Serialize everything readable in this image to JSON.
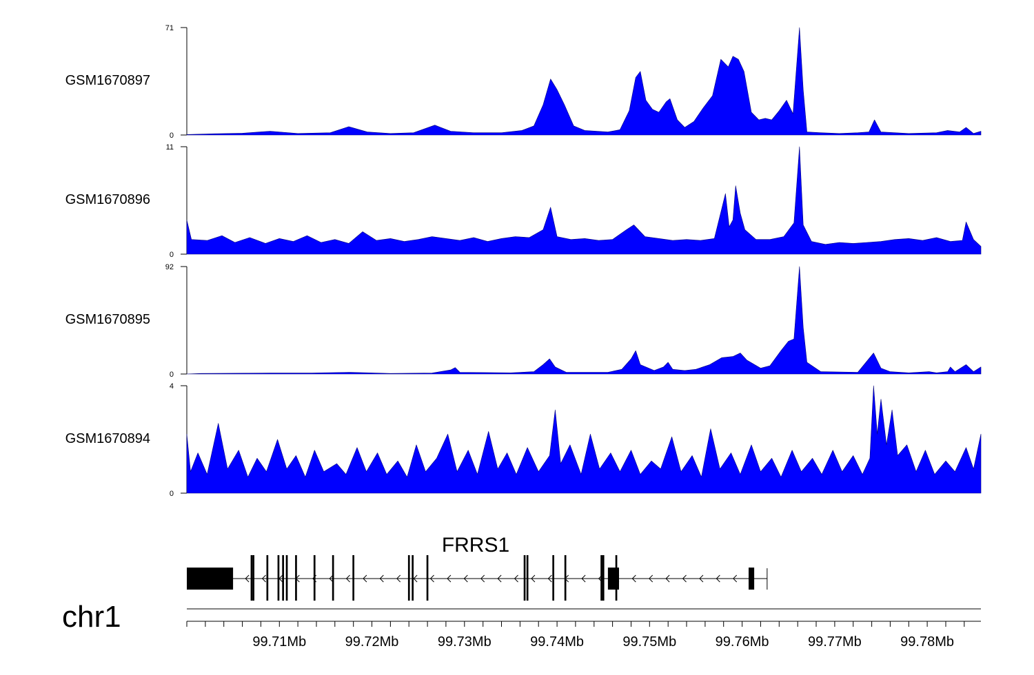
{
  "chart_data": {
    "type": "area",
    "chromosome": "chr1",
    "xlim": [
      99.7,
      99.7858
    ],
    "x_unit": "Mb",
    "x_ticks": [
      99.71,
      99.72,
      99.73,
      99.74,
      99.75,
      99.76,
      99.77,
      99.78
    ],
    "x_tick_labels": [
      "99.71Mb",
      "99.72Mb",
      "99.73Mb",
      "99.74Mb",
      "99.75Mb",
      "99.76Mb",
      "99.77Mb",
      "99.78Mb"
    ],
    "fill_color": "#0000ff",
    "tracks": [
      {
        "name": "GSM1670897",
        "ylim": [
          0,
          71
        ],
        "points": [
          [
            99.7,
            0.3
          ],
          [
            99.703,
            0.8
          ],
          [
            99.706,
            1.2
          ],
          [
            99.709,
            2.5
          ],
          [
            99.712,
            1
          ],
          [
            99.7155,
            1.5
          ],
          [
            99.7175,
            5.5
          ],
          [
            99.7195,
            2
          ],
          [
            99.722,
            1
          ],
          [
            99.7245,
            1.5
          ],
          [
            99.7268,
            6.5
          ],
          [
            99.7285,
            2.5
          ],
          [
            99.731,
            1.5
          ],
          [
            99.734,
            1.5
          ],
          [
            99.7362,
            3
          ],
          [
            99.7375,
            6
          ],
          [
            99.7385,
            20
          ],
          [
            99.7393,
            37
          ],
          [
            99.74,
            30
          ],
          [
            99.7408,
            20
          ],
          [
            99.7418,
            6
          ],
          [
            99.743,
            3
          ],
          [
            99.7455,
            2
          ],
          [
            99.7468,
            3.5
          ],
          [
            99.7478,
            16
          ],
          [
            99.7485,
            38
          ],
          [
            99.749,
            42
          ],
          [
            99.7496,
            23
          ],
          [
            99.7503,
            17
          ],
          [
            99.751,
            15
          ],
          [
            99.7518,
            22
          ],
          [
            99.7522,
            24
          ],
          [
            99.753,
            10
          ],
          [
            99.7538,
            5
          ],
          [
            99.7548,
            9
          ],
          [
            99.7558,
            18
          ],
          [
            99.7568,
            26
          ],
          [
            99.7577,
            50
          ],
          [
            99.7585,
            45
          ],
          [
            99.759,
            52
          ],
          [
            99.7596,
            50
          ],
          [
            99.7602,
            42
          ],
          [
            99.761,
            15
          ],
          [
            99.7618,
            10
          ],
          [
            99.7625,
            11
          ],
          [
            99.7632,
            10
          ],
          [
            99.764,
            16
          ],
          [
            99.7648,
            23
          ],
          [
            99.7655,
            14
          ],
          [
            99.7662,
            71
          ],
          [
            99.7666,
            30
          ],
          [
            99.767,
            2
          ],
          [
            99.7685,
            1.5
          ],
          [
            99.7705,
            1
          ],
          [
            99.7725,
            1.5
          ],
          [
            99.7737,
            2
          ],
          [
            99.7743,
            10
          ],
          [
            99.775,
            2
          ],
          [
            99.778,
            1
          ],
          [
            99.781,
            1.5
          ],
          [
            99.7822,
            3
          ],
          [
            99.7835,
            2
          ],
          [
            99.7842,
            5
          ],
          [
            99.785,
            1
          ],
          [
            99.7858,
            2.5
          ]
        ]
      },
      {
        "name": "GSM1670896",
        "ylim": [
          0,
          11
        ],
        "points": [
          [
            99.7,
            3.5
          ],
          [
            99.7005,
            1.5
          ],
          [
            99.7022,
            1.4
          ],
          [
            99.7038,
            1.9
          ],
          [
            99.7052,
            1.2
          ],
          [
            99.7068,
            1.7
          ],
          [
            99.7085,
            1.1
          ],
          [
            99.71,
            1.6
          ],
          [
            99.7115,
            1.3
          ],
          [
            99.713,
            1.9
          ],
          [
            99.7145,
            1.2
          ],
          [
            99.716,
            1.5
          ],
          [
            99.7175,
            1.1
          ],
          [
            99.719,
            2.3
          ],
          [
            99.7205,
            1.4
          ],
          [
            99.722,
            1.6
          ],
          [
            99.7235,
            1.3
          ],
          [
            99.725,
            1.5
          ],
          [
            99.7265,
            1.8
          ],
          [
            99.728,
            1.6
          ],
          [
            99.7295,
            1.4
          ],
          [
            99.731,
            1.7
          ],
          [
            99.7325,
            1.3
          ],
          [
            99.734,
            1.6
          ],
          [
            99.7355,
            1.8
          ],
          [
            99.737,
            1.7
          ],
          [
            99.7385,
            2.5
          ],
          [
            99.7393,
            4.8
          ],
          [
            99.74,
            1.8
          ],
          [
            99.7415,
            1.5
          ],
          [
            99.743,
            1.6
          ],
          [
            99.7445,
            1.4
          ],
          [
            99.746,
            1.5
          ],
          [
            99.7475,
            2.5
          ],
          [
            99.7483,
            3
          ],
          [
            99.7495,
            1.8
          ],
          [
            99.751,
            1.6
          ],
          [
            99.7525,
            1.4
          ],
          [
            99.754,
            1.5
          ],
          [
            99.7555,
            1.4
          ],
          [
            99.757,
            1.6
          ],
          [
            99.7582,
            6.2
          ],
          [
            99.7586,
            2.8
          ],
          [
            99.759,
            3.5
          ],
          [
            99.7593,
            7
          ],
          [
            99.7598,
            4.2
          ],
          [
            99.7603,
            2.5
          ],
          [
            99.7615,
            1.5
          ],
          [
            99.763,
            1.5
          ],
          [
            99.7645,
            1.8
          ],
          [
            99.7656,
            3.2
          ],
          [
            99.7662,
            11
          ],
          [
            99.7666,
            3
          ],
          [
            99.7675,
            1.3
          ],
          [
            99.769,
            1
          ],
          [
            99.7705,
            1.2
          ],
          [
            99.772,
            1.1
          ],
          [
            99.7735,
            1.2
          ],
          [
            99.775,
            1.3
          ],
          [
            99.7765,
            1.5
          ],
          [
            99.778,
            1.6
          ],
          [
            99.7795,
            1.4
          ],
          [
            99.781,
            1.7
          ],
          [
            99.7825,
            1.3
          ],
          [
            99.7838,
            1.4
          ],
          [
            99.7842,
            3.3
          ],
          [
            99.785,
            1.5
          ],
          [
            99.7858,
            0.8
          ]
        ]
      },
      {
        "name": "GSM1670895",
        "ylim": [
          0,
          92
        ],
        "points": [
          [
            99.7,
            0
          ],
          [
            99.7015,
            0.5
          ],
          [
            99.709,
            0.8
          ],
          [
            99.7135,
            0.8
          ],
          [
            99.7175,
            1.5
          ],
          [
            99.722,
            0.5
          ],
          [
            99.7265,
            0.8
          ],
          [
            99.7285,
            3.5
          ],
          [
            99.729,
            5.5
          ],
          [
            99.7295,
            1.5
          ],
          [
            99.735,
            1
          ],
          [
            99.7375,
            2
          ],
          [
            99.7385,
            8
          ],
          [
            99.7392,
            13
          ],
          [
            99.7398,
            6
          ],
          [
            99.741,
            1.5
          ],
          [
            99.7455,
            1.5
          ],
          [
            99.747,
            4
          ],
          [
            99.748,
            13
          ],
          [
            99.7485,
            20
          ],
          [
            99.749,
            8
          ],
          [
            99.7505,
            3
          ],
          [
            99.7515,
            6
          ],
          [
            99.752,
            10
          ],
          [
            99.7525,
            4
          ],
          [
            99.7538,
            3
          ],
          [
            99.755,
            4
          ],
          [
            99.7565,
            8
          ],
          [
            99.7578,
            14
          ],
          [
            99.759,
            15
          ],
          [
            99.7598,
            18
          ],
          [
            99.7605,
            12
          ],
          [
            99.762,
            5
          ],
          [
            99.763,
            7
          ],
          [
            99.7642,
            20
          ],
          [
            99.765,
            28
          ],
          [
            99.7656,
            30
          ],
          [
            99.7662,
            92
          ],
          [
            99.7666,
            40
          ],
          [
            99.767,
            10
          ],
          [
            99.7685,
            2
          ],
          [
            99.7725,
            1.5
          ],
          [
            99.7742,
            18
          ],
          [
            99.775,
            5
          ],
          [
            99.776,
            2
          ],
          [
            99.778,
            1
          ],
          [
            99.7802,
            2
          ],
          [
            99.781,
            1
          ],
          [
            99.7822,
            2
          ],
          [
            99.7825,
            6
          ],
          [
            99.783,
            2
          ],
          [
            99.7842,
            8
          ],
          [
            99.785,
            2
          ],
          [
            99.7858,
            6
          ]
        ]
      },
      {
        "name": "GSM1670894",
        "ylim": [
          0,
          4
        ],
        "points": [
          [
            99.7,
            2.2
          ],
          [
            99.7004,
            0.8
          ],
          [
            99.7012,
            1.5
          ],
          [
            99.7022,
            0.7
          ],
          [
            99.7034,
            2.6
          ],
          [
            99.7044,
            0.9
          ],
          [
            99.7056,
            1.6
          ],
          [
            99.7066,
            0.6
          ],
          [
            99.7076,
            1.3
          ],
          [
            99.7086,
            0.8
          ],
          [
            99.7098,
            2
          ],
          [
            99.7108,
            0.9
          ],
          [
            99.7118,
            1.4
          ],
          [
            99.7128,
            0.6
          ],
          [
            99.7138,
            1.6
          ],
          [
            99.7148,
            0.8
          ],
          [
            99.7162,
            1.1
          ],
          [
            99.7172,
            0.7
          ],
          [
            99.7184,
            1.7
          ],
          [
            99.7194,
            0.8
          ],
          [
            99.7206,
            1.5
          ],
          [
            99.7216,
            0.7
          ],
          [
            99.7228,
            1.2
          ],
          [
            99.7238,
            0.6
          ],
          [
            99.7248,
            1.8
          ],
          [
            99.7258,
            0.8
          ],
          [
            99.727,
            1.3
          ],
          [
            99.7282,
            2.2
          ],
          [
            99.7292,
            0.8
          ],
          [
            99.7304,
            1.6
          ],
          [
            99.7314,
            0.7
          ],
          [
            99.7326,
            2.3
          ],
          [
            99.7336,
            0.9
          ],
          [
            99.7346,
            1.5
          ],
          [
            99.7356,
            0.7
          ],
          [
            99.7368,
            1.7
          ],
          [
            99.738,
            0.8
          ],
          [
            99.7392,
            1.4
          ],
          [
            99.7398,
            3.1
          ],
          [
            99.7404,
            1.1
          ],
          [
            99.7414,
            1.8
          ],
          [
            99.7426,
            0.7
          ],
          [
            99.7436,
            2.2
          ],
          [
            99.7446,
            0.9
          ],
          [
            99.7458,
            1.5
          ],
          [
            99.7468,
            0.8
          ],
          [
            99.748,
            1.6
          ],
          [
            99.749,
            0.7
          ],
          [
            99.7502,
            1.2
          ],
          [
            99.7512,
            0.9
          ],
          [
            99.7524,
            2.1
          ],
          [
            99.7534,
            0.8
          ],
          [
            99.7546,
            1.4
          ],
          [
            99.7556,
            0.6
          ],
          [
            99.7566,
            2.4
          ],
          [
            99.7576,
            0.9
          ],
          [
            99.7588,
            1.5
          ],
          [
            99.7598,
            0.7
          ],
          [
            99.761,
            1.8
          ],
          [
            99.762,
            0.8
          ],
          [
            99.7632,
            1.3
          ],
          [
            99.7642,
            0.6
          ],
          [
            99.7654,
            1.6
          ],
          [
            99.7664,
            0.8
          ],
          [
            99.7676,
            1.3
          ],
          [
            99.7686,
            0.7
          ],
          [
            99.7698,
            1.6
          ],
          [
            99.7708,
            0.8
          ],
          [
            99.772,
            1.4
          ],
          [
            99.773,
            0.7
          ],
          [
            99.7738,
            1.3
          ],
          [
            99.7742,
            4
          ],
          [
            99.7746,
            2.2
          ],
          [
            99.775,
            3.5
          ],
          [
            99.7756,
            1.8
          ],
          [
            99.7762,
            3.1
          ],
          [
            99.7768,
            1.4
          ],
          [
            99.7778,
            1.8
          ],
          [
            99.7788,
            0.8
          ],
          [
            99.7798,
            1.6
          ],
          [
            99.7808,
            0.7
          ],
          [
            99.782,
            1.2
          ],
          [
            99.783,
            0.8
          ],
          [
            99.7842,
            1.7
          ],
          [
            99.785,
            0.9
          ],
          [
            99.7858,
            2.2
          ]
        ]
      }
    ],
    "gene": {
      "name": "FRRS1",
      "strand": "-",
      "start": 99.7,
      "end": 99.7627,
      "exons": [
        [
          99.7,
          99.705
        ],
        [
          99.7069,
          99.7071
        ],
        [
          99.7071,
          99.7073
        ],
        [
          99.7086,
          99.7088
        ],
        [
          99.7098,
          99.71
        ],
        [
          99.7103,
          99.7105
        ],
        [
          99.7107,
          99.7109
        ],
        [
          99.7117,
          99.7119
        ],
        [
          99.7137,
          99.7139
        ],
        [
          99.7157,
          99.7159
        ],
        [
          99.7179,
          99.7181
        ],
        [
          99.7239,
          99.7241
        ],
        [
          99.7243,
          99.7245
        ],
        [
          99.7259,
          99.7261
        ],
        [
          99.7364,
          99.7366
        ],
        [
          99.7367,
          99.7369
        ],
        [
          99.7395,
          99.7397
        ],
        [
          99.7408,
          99.741
        ],
        [
          99.7447,
          99.7449
        ],
        [
          99.7449,
          99.7451
        ],
        [
          99.7455,
          99.7467
        ],
        [
          99.7463,
          99.7465
        ],
        [
          99.7607,
          99.7613
        ]
      ]
    }
  }
}
